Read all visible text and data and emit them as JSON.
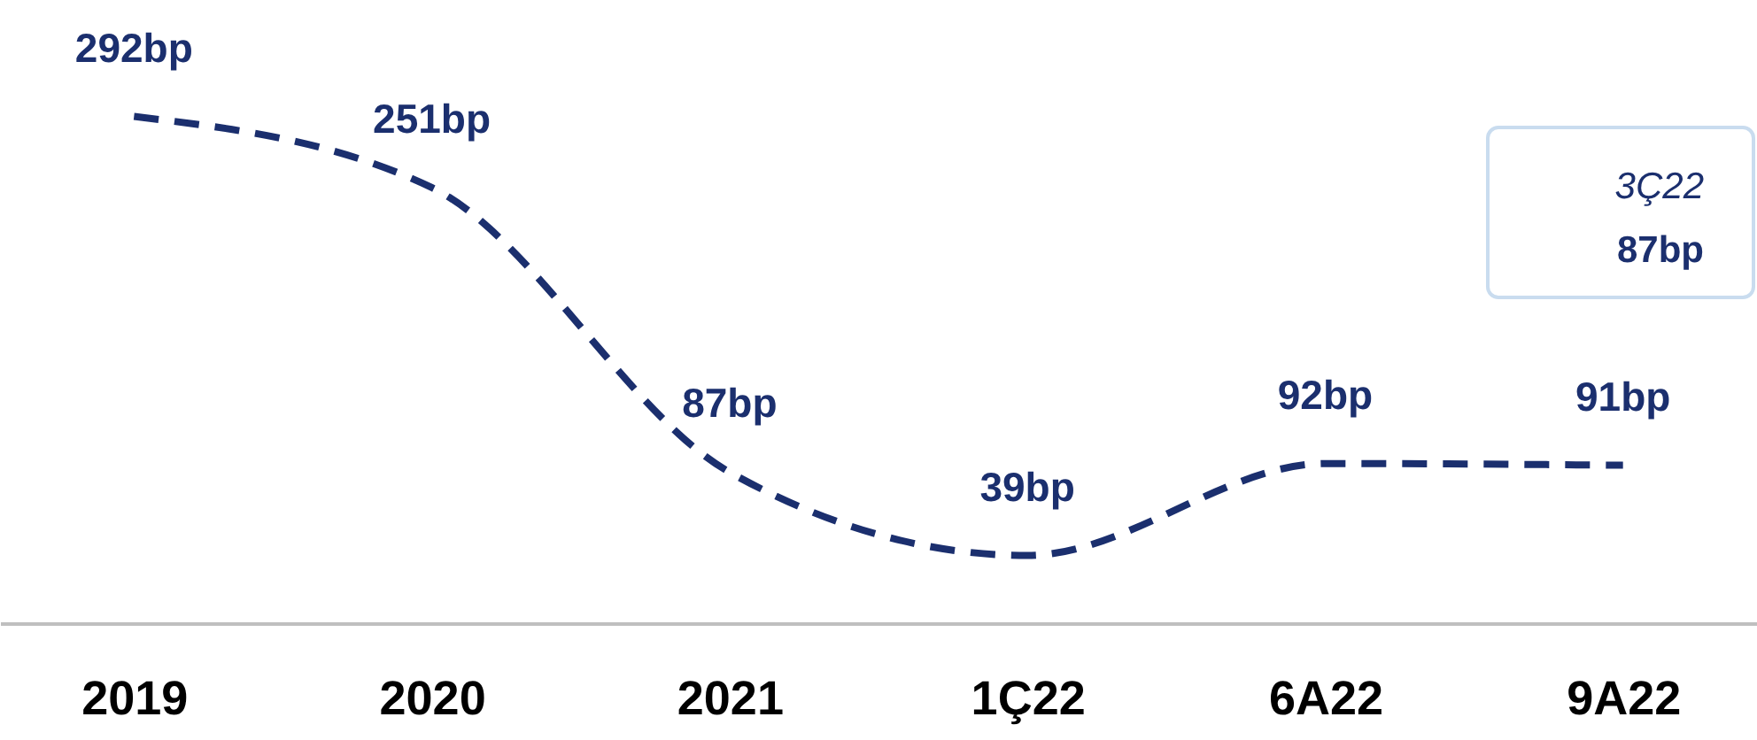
{
  "chart_data": {
    "type": "line",
    "categories": [
      "2019",
      "2020",
      "2021",
      "1Ç22",
      "6A22",
      "9A22"
    ],
    "series": [
      {
        "color": "#1b2f6e",
        "values": [
          292,
          251,
          87,
          39,
          92,
          91
        ],
        "value_labels": [
          "292bp",
          "251bp",
          "87bp",
          "39bp",
          "92bp",
          "91bp"
        ]
      }
    ],
    "line_style": "dashed",
    "marker": "none",
    "grid": false,
    "annotations": [
      "3Ç22",
      "87bp"
    ]
  }
}
